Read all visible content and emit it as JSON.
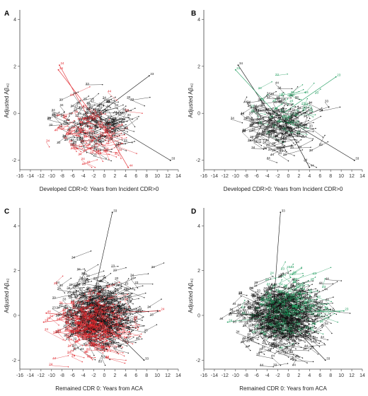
{
  "figure": {
    "colors": {
      "black_series": "#111111",
      "red_series": "#e0242a",
      "green_series": "#1a9a5a",
      "axis": "#444444"
    },
    "panels": [
      {
        "id": "A",
        "label": "A",
        "xlabel": "Developed CDR>0: Years from Incident CDR>0",
        "ylabel": "Adjusted Aβ₄₂",
        "highlight": "red",
        "density": "sparse"
      },
      {
        "id": "B",
        "label": "B",
        "xlabel": "Developed CDR>0: Years from Incident CDR>0",
        "ylabel": "Adjusted Aβ₄₂",
        "highlight": "green",
        "density": "sparse"
      },
      {
        "id": "C",
        "label": "C",
        "xlabel": "Remained CDR 0: Years from ACA",
        "ylabel": "Adjusted Aβ₄₂",
        "highlight": "red",
        "density": "dense"
      },
      {
        "id": "D",
        "label": "D",
        "xlabel": "Remained CDR 0: Years from ACA",
        "ylabel": "Adjusted Aβ₄₂",
        "highlight": "green",
        "density": "dense"
      }
    ]
  },
  "chart_data": [
    {
      "type": "scatter",
      "panel": "A",
      "xlabel": "Developed CDR>0: Years from Incident CDR>0",
      "ylabel": "Adjusted Aβ₄₂",
      "xlim": [
        -16,
        14
      ],
      "ylim": [
        -2.4,
        4.4
      ],
      "xticks": [
        -16,
        -14,
        -12,
        -10,
        -8,
        -6,
        -4,
        -2,
        0,
        2,
        4,
        6,
        8,
        10,
        12,
        14
      ],
      "yticks": [
        -2,
        0,
        2,
        4
      ],
      "point_labels": [
        "33",
        "34",
        "44",
        "23",
        "24"
      ],
      "series": [
        {
          "color": "black",
          "n_points": 170,
          "x_center": -2.5,
          "x_sd": 3.2,
          "y_center": -0.4,
          "y_sd": 0.6,
          "labels": [
            "33",
            "34",
            "23"
          ]
        },
        {
          "color": "red",
          "n_points": 90,
          "x_center": -4.0,
          "x_sd": 3.0,
          "y_center": -0.9,
          "y_sd": 0.55,
          "labels": [
            "34",
            "44",
            "24"
          ]
        }
      ],
      "annotated_points": [
        {
          "x": -8.5,
          "y": 2.05,
          "label": "24",
          "color": "red"
        },
        {
          "x": -8.7,
          "y": 1.85,
          "label": "34",
          "color": "red"
        },
        {
          "x": 8.5,
          "y": 1.6,
          "label": "23",
          "color": "black"
        },
        {
          "x": 12.5,
          "y": -2.0,
          "label": "33",
          "color": "black"
        },
        {
          "x": 4.5,
          "y": -2.3,
          "label": "44",
          "color": "red"
        }
      ]
    },
    {
      "type": "scatter",
      "panel": "B",
      "xlabel": "Developed CDR>0: Years from Incident CDR>0",
      "ylabel": "Adjusted Aβ₄₂",
      "xlim": [
        -16,
        14
      ],
      "ylim": [
        -2.4,
        4.4
      ],
      "xticks": [
        -16,
        -14,
        -12,
        -10,
        -8,
        -6,
        -4,
        -2,
        0,
        2,
        4,
        6,
        8,
        10,
        12,
        14
      ],
      "yticks": [
        -2,
        0,
        2,
        4
      ],
      "point_labels": [
        "33",
        "34",
        "44",
        "23",
        "24"
      ],
      "series": [
        {
          "color": "black",
          "n_points": 210,
          "x_center": -2.5,
          "x_sd": 3.2,
          "y_center": -0.5,
          "y_sd": 0.6,
          "labels": [
            "33",
            "34",
            "44"
          ]
        },
        {
          "color": "green",
          "n_points": 40,
          "x_center": -1.0,
          "x_sd": 3.0,
          "y_center": 0.3,
          "y_sd": 0.55,
          "labels": [
            "23",
            "24"
          ]
        }
      ],
      "annotated_points": [
        {
          "x": -9.5,
          "y": 2.05,
          "label": "34",
          "color": "black"
        },
        {
          "x": -10.0,
          "y": 1.85,
          "label": "23",
          "color": "green"
        },
        {
          "x": 9.0,
          "y": 1.55,
          "label": "23",
          "color": "green"
        },
        {
          "x": 12.5,
          "y": -2.0,
          "label": "33",
          "color": "black"
        },
        {
          "x": 4.0,
          "y": -2.3,
          "label": "44",
          "color": "black"
        }
      ]
    },
    {
      "type": "scatter",
      "panel": "C",
      "xlabel": "Remained CDR 0: Years from ACA",
      "ylabel": "Adjusted Aβ₄₂",
      "xlim": [
        -16,
        14
      ],
      "ylim": [
        -2.4,
        4.8
      ],
      "xticks": [
        -16,
        -14,
        -12,
        -10,
        -8,
        -6,
        -4,
        -2,
        0,
        2,
        4,
        6,
        8,
        10,
        12,
        14
      ],
      "yticks": [
        -2,
        0,
        2,
        4
      ],
      "point_labels": [
        "33",
        "34",
        "44",
        "23",
        "24"
      ],
      "series": [
        {
          "color": "black",
          "n_points": 520,
          "x_center": -2.0,
          "x_sd": 3.3,
          "y_center": 0.0,
          "y_sd": 0.75,
          "labels": [
            "33",
            "34",
            "23"
          ]
        },
        {
          "color": "red",
          "n_points": 260,
          "x_center": -3.0,
          "x_sd": 3.0,
          "y_center": -0.4,
          "y_sd": 0.65,
          "labels": [
            "34",
            "44",
            "24"
          ]
        }
      ],
      "annotated_points": [
        {
          "x": 1.5,
          "y": 4.6,
          "label": "33",
          "color": "black"
        },
        {
          "x": -11.0,
          "y": 0.1,
          "label": "44",
          "color": "red"
        },
        {
          "x": -11.5,
          "y": -0.3,
          "label": "24",
          "color": "red"
        },
        {
          "x": 10.5,
          "y": 0.2,
          "label": "24",
          "color": "red"
        },
        {
          "x": 7.5,
          "y": -2.0,
          "label": "33",
          "color": "black"
        }
      ]
    },
    {
      "type": "scatter",
      "panel": "D",
      "xlabel": "Remained CDR 0: Years from ACA",
      "ylabel": "Adjusted Aβ₄₂",
      "xlim": [
        -16,
        14
      ],
      "ylim": [
        -2.4,
        4.8
      ],
      "xticks": [
        -16,
        -14,
        -12,
        -10,
        -8,
        -6,
        -4,
        -2,
        0,
        2,
        4,
        6,
        8,
        10,
        12,
        14
      ],
      "yticks": [
        -2,
        0,
        2,
        4
      ],
      "point_labels": [
        "33",
        "34",
        "44",
        "23",
        "24"
      ],
      "series": [
        {
          "color": "black",
          "n_points": 640,
          "x_center": -2.0,
          "x_sd": 3.3,
          "y_center": -0.1,
          "y_sd": 0.75,
          "labels": [
            "33",
            "34",
            "44"
          ]
        },
        {
          "color": "green",
          "n_points": 150,
          "x_center": -1.0,
          "x_sd": 3.2,
          "y_center": 0.4,
          "y_sd": 0.7,
          "labels": [
            "23",
            "24"
          ]
        }
      ],
      "annotated_points": [
        {
          "x": -1.5,
          "y": 4.6,
          "label": "33",
          "color": "black"
        },
        {
          "x": -11.0,
          "y": 0.1,
          "label": "44",
          "color": "black"
        },
        {
          "x": -11.5,
          "y": -0.3,
          "label": "24",
          "color": "green"
        },
        {
          "x": 10.5,
          "y": 0.2,
          "label": "23",
          "color": "green"
        },
        {
          "x": 7.0,
          "y": -2.0,
          "label": "33",
          "color": "black"
        }
      ]
    }
  ]
}
